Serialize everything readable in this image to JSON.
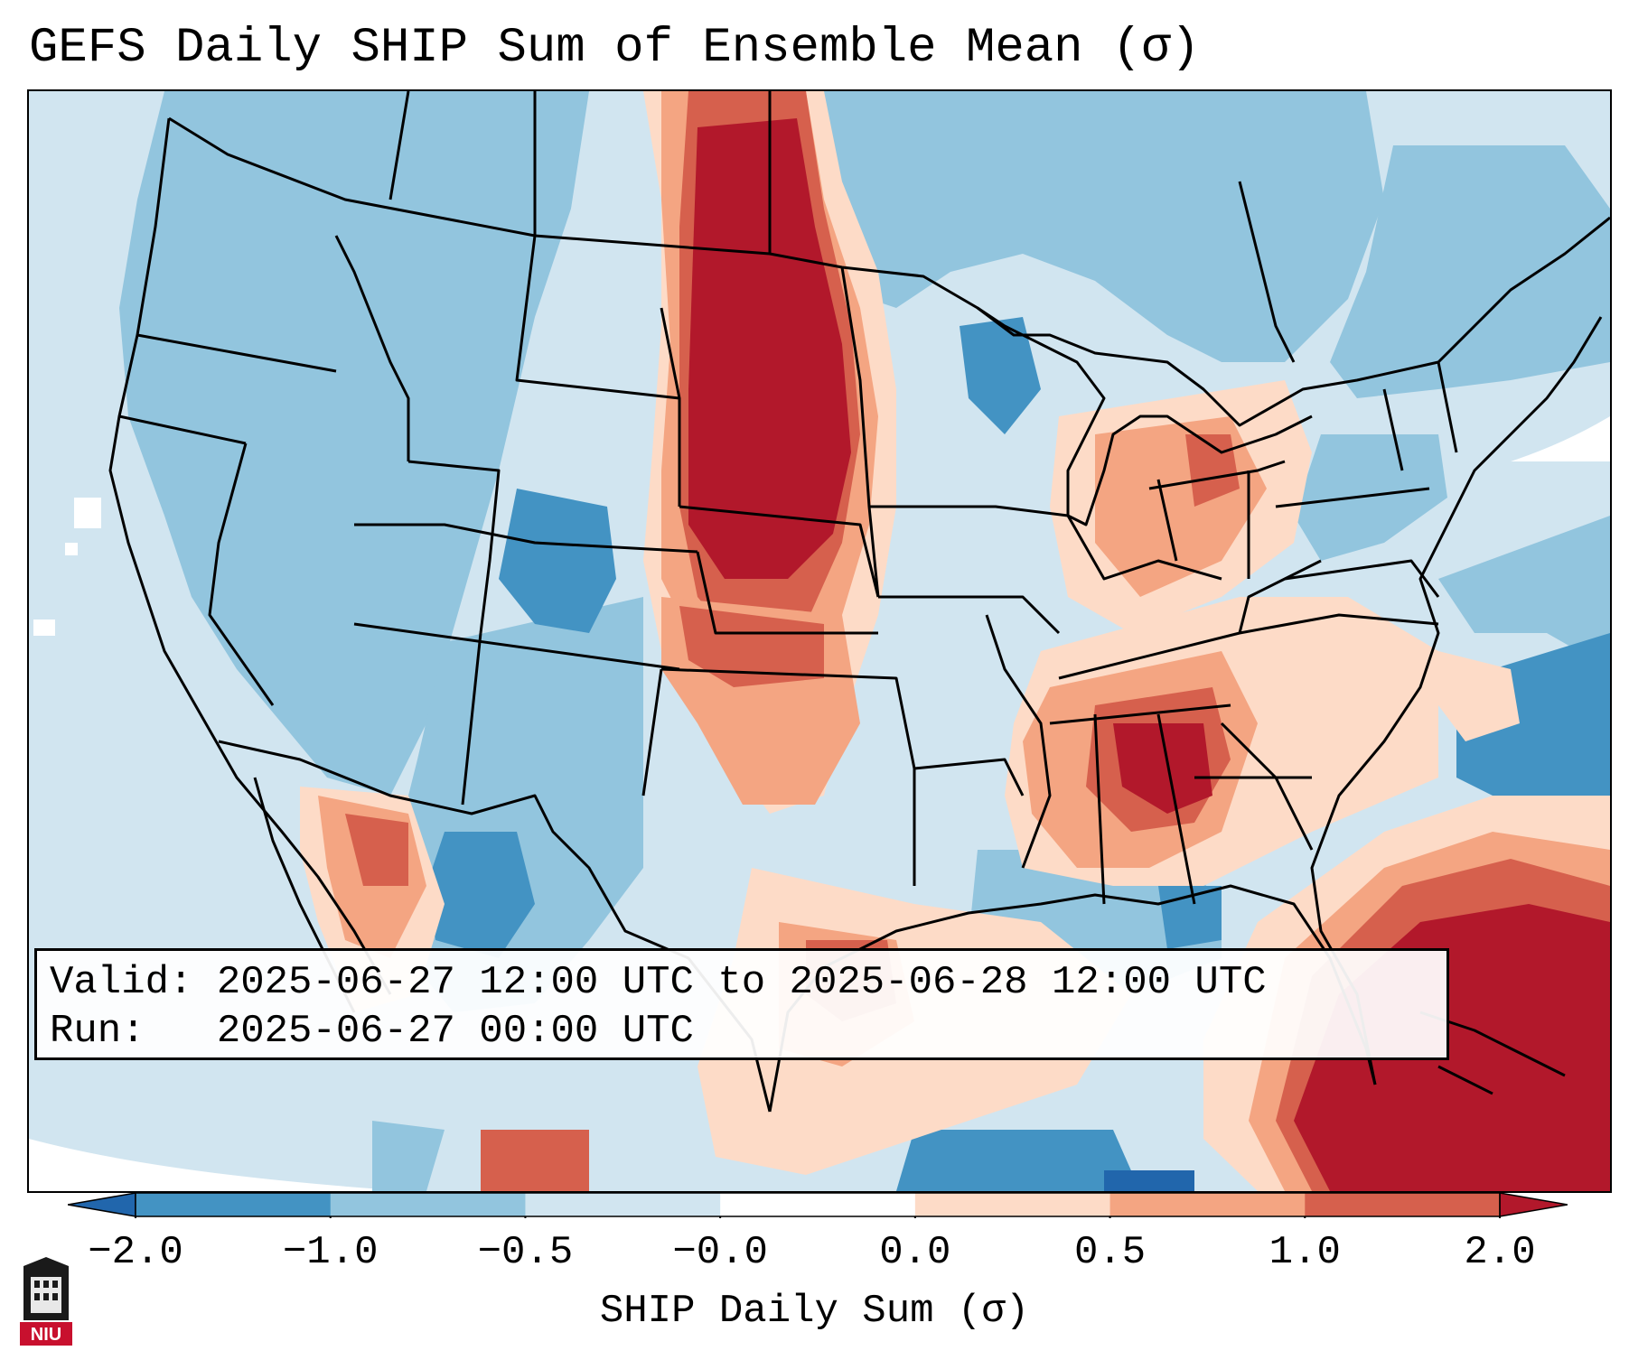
{
  "title": "GEFS Daily SHIP Sum of Ensemble Mean (σ)",
  "info": {
    "valid_label": "Valid:",
    "valid_value": "2025-06-27 12:00 UTC to 2025-06-28 12:00 UTC",
    "run_label": "Run:",
    "run_value": "2025-06-27 00:00 UTC"
  },
  "colorbar": {
    "label": "SHIP Daily Sum (σ)",
    "ticks": [
      "−2.0",
      "−1.0",
      "−0.5",
      "−0.0",
      "0.0",
      "0.5",
      "1.0",
      "2.0"
    ],
    "colors": [
      "#4393c3",
      "#92c5de",
      "#d1e5f0",
      "#ffffff",
      "#fddbc7",
      "#f4a582",
      "#d6604d"
    ],
    "under_color": "#2166ac",
    "over_color": "#b2182b"
  },
  "palette": {
    "strong_neg": "#4393c3",
    "neg": "#92c5de",
    "weak_neg": "#d1e5f0",
    "weak_pos": "#fddbc7",
    "pos": "#f4a582",
    "strong_pos": "#d6604d",
    "extreme_pos": "#b2182b"
  },
  "logo": {
    "text": "NIU",
    "color": "#c8102e"
  }
}
